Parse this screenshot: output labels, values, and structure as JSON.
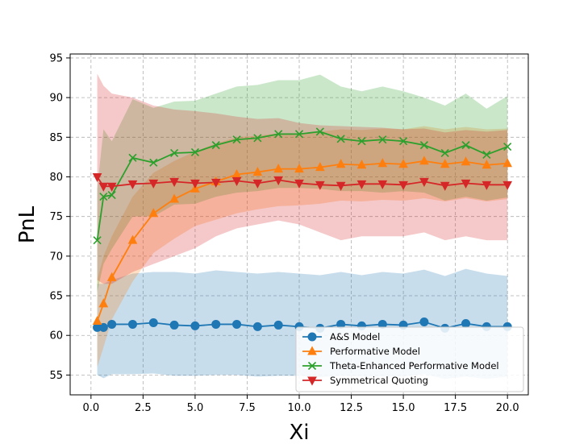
{
  "chart_data": {
    "type": "line",
    "title": "",
    "xlabel": "Xi",
    "ylabel": "PnL",
    "xlim": [
      -1.0,
      21.0
    ],
    "ylim": [
      52.5,
      95.5
    ],
    "xticks": [
      0.0,
      2.5,
      5.0,
      7.5,
      10.0,
      12.5,
      15.0,
      17.5,
      20.0
    ],
    "xtick_labels": [
      "0.0",
      "2.5",
      "5.0",
      "7.5",
      "10.0",
      "12.5",
      "15.0",
      "17.5",
      "20.0"
    ],
    "yticks": [
      55,
      60,
      65,
      70,
      75,
      80,
      85,
      90,
      95
    ],
    "ytick_labels": [
      "55",
      "60",
      "65",
      "70",
      "75",
      "80",
      "85",
      "90",
      "95"
    ],
    "grid": true,
    "legend_position": "lower-right",
    "x": [
      0.3,
      0.6,
      1,
      2,
      3,
      4,
      5,
      6,
      7,
      8,
      9,
      10,
      11,
      12,
      13,
      14,
      15,
      16,
      17,
      18,
      19,
      20
    ],
    "series": [
      {
        "name": "A&S Model",
        "color": "#1f77b4",
        "marker": "circle",
        "values": [
          61.0,
          61.0,
          61.4,
          61.4,
          61.6,
          61.3,
          61.2,
          61.4,
          61.4,
          61.1,
          61.3,
          61.1,
          60.9,
          61.4,
          61.2,
          61.4,
          61.3,
          61.7,
          60.9,
          61.5,
          61.1,
          61.1
        ],
        "band_upper": [
          66.5,
          66.5,
          67.0,
          67.8,
          68.0,
          68.0,
          67.8,
          68.2,
          68.0,
          67.8,
          68.0,
          67.8,
          67.6,
          68.0,
          67.6,
          68.0,
          67.8,
          68.3,
          67.5,
          68.4,
          67.8,
          67.5
        ],
        "band_lower": [
          55.0,
          54.6,
          55.1,
          55.1,
          55.2,
          54.9,
          54.9,
          55.0,
          55.0,
          54.8,
          54.9,
          54.9,
          54.7,
          54.9,
          54.8,
          54.8,
          54.8,
          55.1,
          54.5,
          54.8,
          54.5,
          54.8
        ]
      },
      {
        "name": "Performative Model",
        "color": "#ff7f0e",
        "marker": "triangle-up",
        "values": [
          61.8,
          64.0,
          67.3,
          72.0,
          75.4,
          77.2,
          78.5,
          79.4,
          80.3,
          80.6,
          81.0,
          81.0,
          81.2,
          81.6,
          81.5,
          81.7,
          81.6,
          82.0,
          81.6,
          81.9,
          81.5,
          81.7
        ],
        "band_upper": [
          67.0,
          70.0,
          72.5,
          77.5,
          80.5,
          82.0,
          83.2,
          84.2,
          85.0,
          85.2,
          85.5,
          85.5,
          85.7,
          86.0,
          85.9,
          86.1,
          86.0,
          86.4,
          86.0,
          86.3,
          86.0,
          86.1
        ],
        "band_lower": [
          56.0,
          58.5,
          62.0,
          66.8,
          70.4,
          72.2,
          73.8,
          74.6,
          75.4,
          75.9,
          76.3,
          76.4,
          76.6,
          77.0,
          76.9,
          77.1,
          77.0,
          77.3,
          76.9,
          77.3,
          76.9,
          77.2
        ]
      },
      {
        "name": "Theta-Enhanced Performative Model",
        "color": "#2ca02c",
        "marker": "x",
        "values": [
          72.0,
          77.5,
          77.7,
          82.4,
          81.8,
          83.0,
          83.1,
          84.0,
          84.7,
          84.9,
          85.4,
          85.4,
          85.7,
          84.8,
          84.5,
          84.7,
          84.5,
          84.0,
          83.0,
          84.0,
          82.8,
          83.8
        ],
        "band_upper": [
          78.5,
          86.0,
          84.5,
          89.8,
          88.7,
          89.5,
          89.6,
          90.5,
          91.4,
          91.6,
          92.2,
          92.2,
          92.9,
          91.4,
          90.8,
          91.4,
          90.8,
          90.0,
          89.0,
          90.5,
          88.6,
          90.2
        ],
        "band_lower": [
          65.5,
          69.0,
          70.9,
          75.0,
          75.0,
          76.5,
          76.6,
          77.5,
          78.0,
          78.2,
          78.6,
          78.6,
          78.5,
          78.2,
          78.2,
          78.0,
          78.2,
          78.0,
          77.0,
          77.5,
          77.0,
          77.4
        ]
      },
      {
        "name": "Symmetrical Quoting",
        "color": "#d62728",
        "marker": "triangle-down",
        "values": [
          80.0,
          78.8,
          78.8,
          79.1,
          79.2,
          79.4,
          79.2,
          79.3,
          79.5,
          79.2,
          79.6,
          79.2,
          79.0,
          78.9,
          79.1,
          79.1,
          79.0,
          79.4,
          78.9,
          79.2,
          79.0,
          79.0
        ],
        "band_upper": [
          93.0,
          91.5,
          90.5,
          90.0,
          89.0,
          88.5,
          88.3,
          88.0,
          87.6,
          87.3,
          87.4,
          86.8,
          86.5,
          86.4,
          86.3,
          86.2,
          86.0,
          86.1,
          85.6,
          85.9,
          85.7,
          85.9
        ],
        "band_lower": [
          67.0,
          66.5,
          66.5,
          68.0,
          69.0,
          70.0,
          71.0,
          72.5,
          73.5,
          74.0,
          74.5,
          74.0,
          73.0,
          72.0,
          72.5,
          72.5,
          72.5,
          73.0,
          72.0,
          72.5,
          72.0,
          72.0
        ]
      }
    ]
  }
}
